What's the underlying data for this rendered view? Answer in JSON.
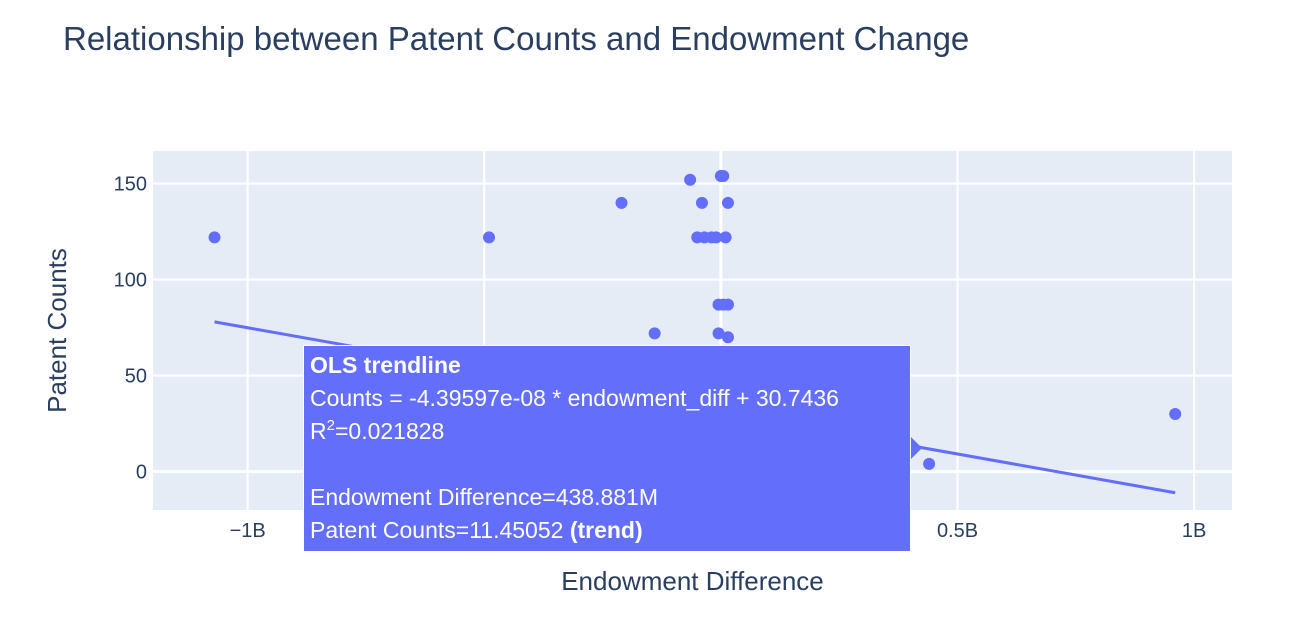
{
  "chart_data": {
    "type": "scatter",
    "title": "Relationship between Patent Counts and Endowment Change",
    "xlabel": "Endowment Difference",
    "ylabel": "Patent Counts",
    "xlim": [
      -1200000000.0,
      1080000000.0
    ],
    "ylim": [
      -20,
      167
    ],
    "x_ticks": [
      {
        "value": -1000000000.0,
        "label": "−1B"
      },
      {
        "value": -500000000.0,
        "label": ""
      },
      {
        "value": 0,
        "label": ""
      },
      {
        "value": 500000000.0,
        "label": "0.5B"
      },
      {
        "value": 1000000000.0,
        "label": "1B"
      }
    ],
    "y_ticks": [
      {
        "value": 0,
        "label": "0"
      },
      {
        "value": 50,
        "label": "50"
      },
      {
        "value": 100,
        "label": "100"
      },
      {
        "value": 150,
        "label": "150"
      }
    ],
    "grid": true,
    "marker_color": "#636efa",
    "series": [
      {
        "mode": "markers",
        "x": [
          -1070000000.0,
          -490000000.0,
          -210000000.0,
          -140000000.0,
          -65000000.0,
          -50000000.0,
          -40000000.0,
          -35000000.0,
          -20000000.0,
          -10000000.0,
          -5000000.0,
          -5000000.0,
          0.0,
          5000000.0,
          5000000.0,
          10000000.0,
          15000000.0,
          15000000.0,
          15000000.0,
          440000000.0,
          960000000.0
        ],
        "y": [
          122,
          122,
          140,
          72,
          152,
          122,
          140,
          122,
          122,
          122,
          87,
          72,
          154,
          154,
          87,
          122,
          140,
          87,
          70,
          4,
          30
        ]
      },
      {
        "mode": "lines",
        "x": [
          -1070000000.0,
          960000000.0
        ],
        "y": [
          78,
          -11
        ]
      }
    ],
    "tooltip": {
      "header": "OLS trendline",
      "equation": "Counts = -4.39597e-08 * endowment_diff + 30.7436",
      "r2_label": "R",
      "r2_sup": "2",
      "r2_value": "=0.021828",
      "x_line": "Endowment Difference=438.881M",
      "y_line": "Patent Counts=11.45052",
      "y_suffix": "(trend)"
    }
  }
}
